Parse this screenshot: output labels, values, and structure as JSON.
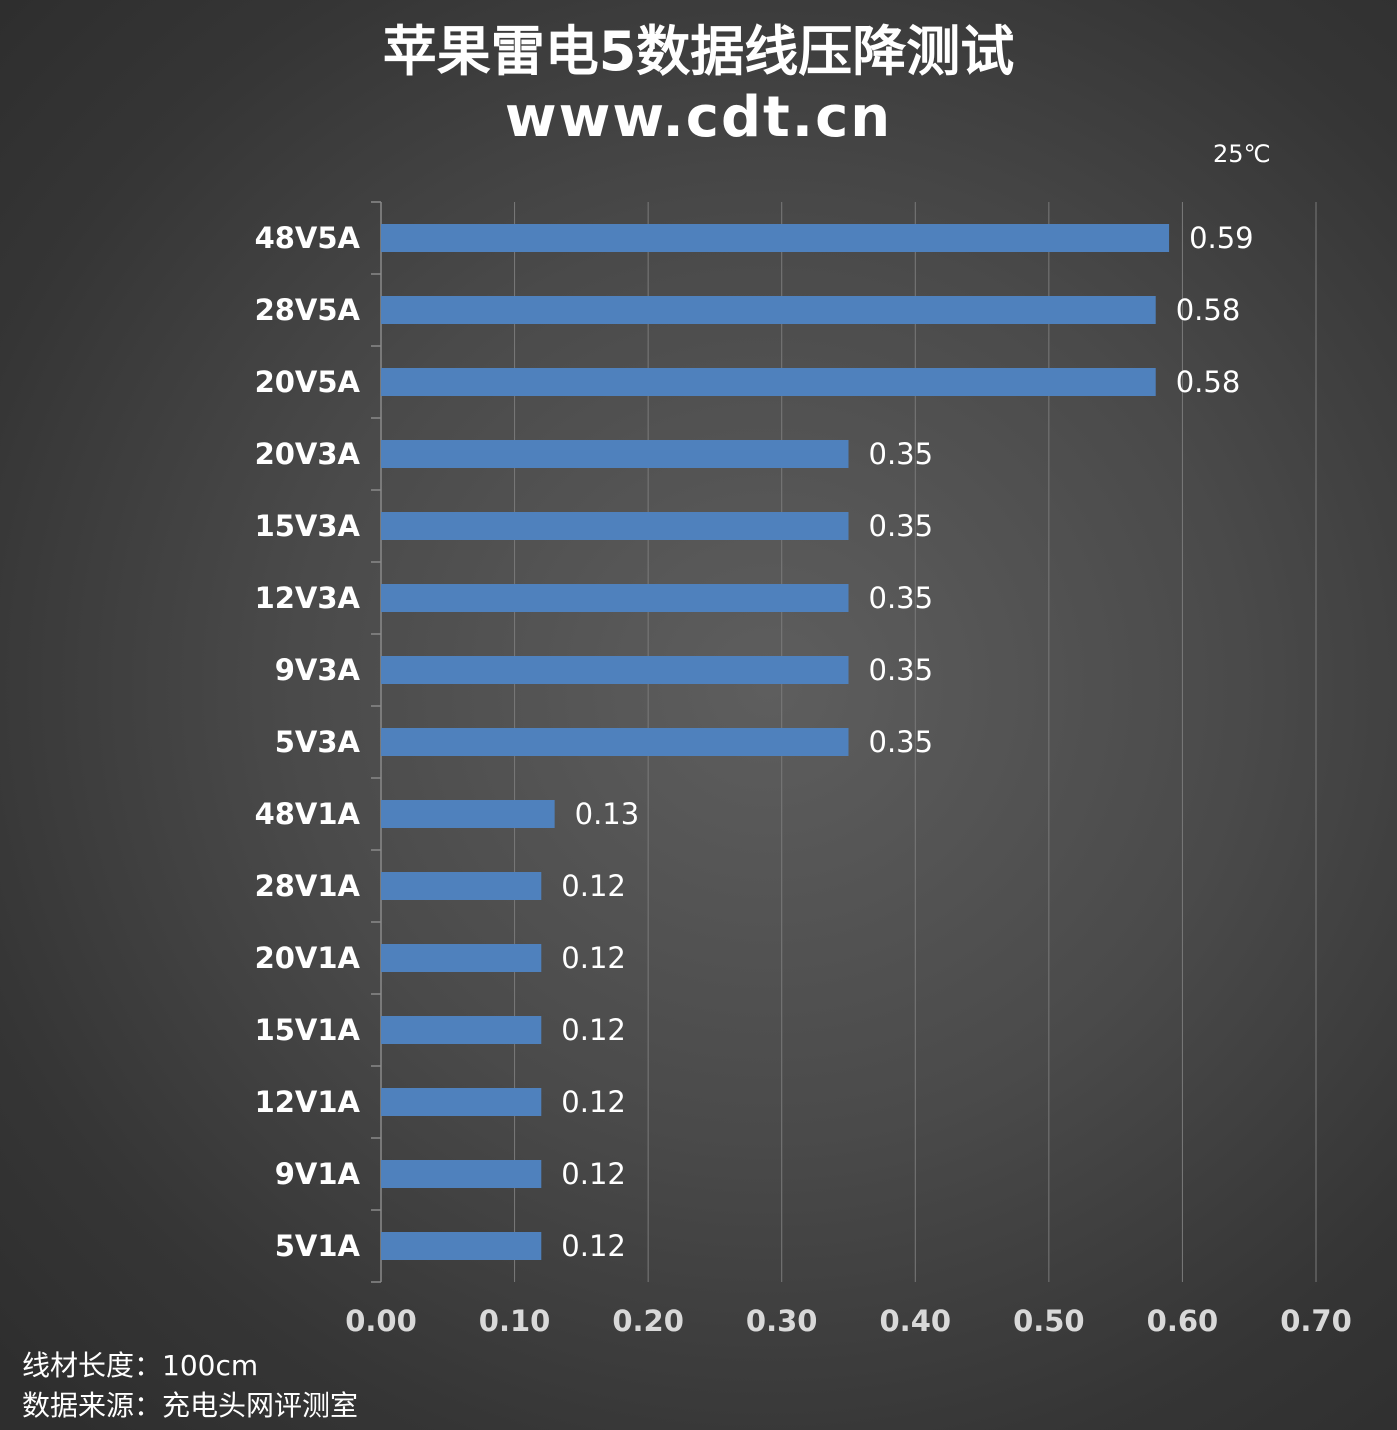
{
  "header": {
    "title": "苹果雷电5数据线压降测试",
    "subtitle": "www.cdt.cn",
    "temperature": "25℃"
  },
  "footer": {
    "length_line": "线材长度：100cm",
    "source_line": "数据来源：充电头网评测室"
  },
  "chart_data": {
    "type": "bar",
    "orientation": "horizontal",
    "title": "苹果雷电5数据线压降测试",
    "xlabel": "",
    "ylabel": "",
    "categories": [
      "48V5A",
      "28V5A",
      "20V5A",
      "20V3A",
      "15V3A",
      "12V3A",
      "9V3A",
      "5V3A",
      "48V1A",
      "28V1A",
      "20V1A",
      "15V1A",
      "12V1A",
      "9V1A",
      "5V1A"
    ],
    "values": [
      0.59,
      0.58,
      0.58,
      0.35,
      0.35,
      0.35,
      0.35,
      0.35,
      0.13,
      0.12,
      0.12,
      0.12,
      0.12,
      0.12,
      0.12
    ],
    "data_labels": [
      "0.59",
      "0.58",
      "0.58",
      "0.35",
      "0.35",
      "0.35",
      "0.35",
      "0.35",
      "0.13",
      "0.12",
      "0.12",
      "0.12",
      "0.12",
      "0.12",
      "0.12"
    ],
    "xlim": [
      0,
      0.7
    ],
    "ticks": [
      "0.00",
      "0.10",
      "0.20",
      "0.30",
      "0.40",
      "0.50",
      "0.60",
      "0.70"
    ],
    "grid": true,
    "legend": "none",
    "bar_color": "#4f81bd"
  }
}
